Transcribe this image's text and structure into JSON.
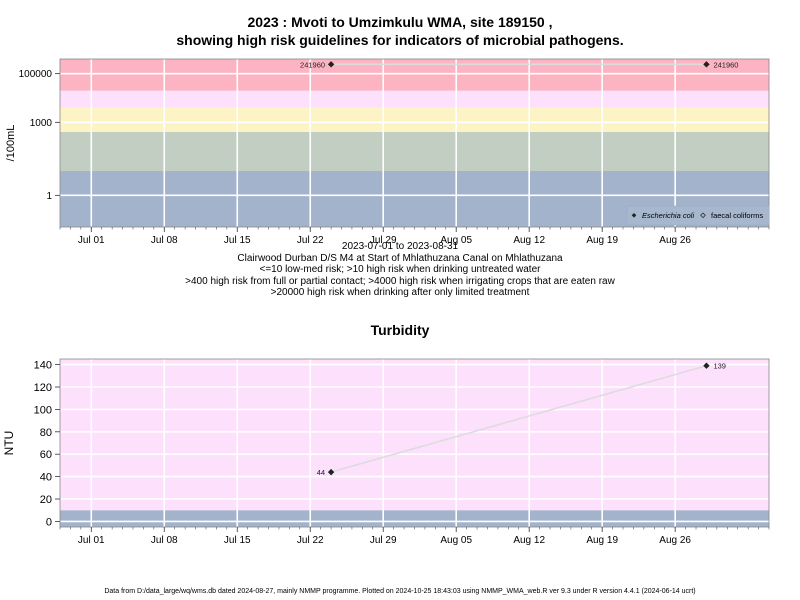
{
  "header": {
    "title_line1": "2023 : Mvoti to Umzimkulu WMA, site 189150 ,",
    "title_line2": "showing high risk guidelines for indicators of microbial pathogens."
  },
  "caption": [
    "2023-07-01 to 2023-08-31",
    "Clairwood Durban D/S M4 at Start of Mhlathuzana Canal on Mhlathuzana",
    "<=10 low-med risk; >10 high risk when drinking untreated water",
    ">400 high risk from full or partial contact; >4000 high risk when irrigating crops that are eaten raw",
    ">20000 high risk when drinking after only limited treatment"
  ],
  "footer": "Data from D:/data_large/wq/wms.db dated 2024-08-27, mainly NMMP programme. Plotted on 2024-10-25 18:43:03 using NMMP_WMA_web.R ver 9.3 under R version 4.4.1 (2024-06-14 ucrt)",
  "colors": {
    "band_low": "#a3b3cb",
    "band_contact": "#c2cec2",
    "band_irrigation": "#fcf4c4",
    "band_treatment": "#fce0fc",
    "band_high": "#fcb4c2",
    "grid": "#ffffff",
    "series_line": "#dcdcdc",
    "marker": "#222222"
  },
  "chart_data": [
    {
      "type": "scatter",
      "title": "",
      "xlabel": "",
      "ylabel": "/100mL",
      "y_scale": "log",
      "xlim": [
        "2023-06-28",
        "2023-09-04"
      ],
      "ylim": [
        0.05,
        400000
      ],
      "x_ticks": [
        "2023-07-01",
        "2023-07-08",
        "2023-07-15",
        "2023-07-22",
        "2023-07-29",
        "2023-08-05",
        "2023-08-12",
        "2023-08-19",
        "2023-08-26"
      ],
      "x_tick_labels": [
        "Jul 01",
        "Jul 08",
        "Jul 15",
        "Jul 22",
        "Jul 29",
        "Aug 05",
        "Aug 12",
        "Aug 19",
        "Aug 26"
      ],
      "y_ticks": [
        1,
        1000,
        100000
      ],
      "y_tick_labels": [
        "1",
        "1000",
        "100000"
      ],
      "bands": [
        {
          "from": 0.05,
          "to": 10,
          "color": "#a3b3cb"
        },
        {
          "from": 10,
          "to": 400,
          "color": "#c2cec2"
        },
        {
          "from": 400,
          "to": 4000,
          "color": "#fcf4c4"
        },
        {
          "from": 4000,
          "to": 20000,
          "color": "#fce0fc"
        },
        {
          "from": 20000,
          "to": 400000,
          "color": "#fcb4c2"
        }
      ],
      "legend": {
        "position": "bottom-right",
        "entries": [
          "Escherichia coli",
          "faecal coliforms"
        ]
      },
      "series": [
        {
          "name": "Escherichia coli",
          "marker": "filled-diamond",
          "x": [
            "2023-07-24",
            "2023-08-29"
          ],
          "y": [
            241960,
            241960
          ],
          "labels": [
            "241960",
            "241960"
          ]
        }
      ]
    },
    {
      "type": "line",
      "title": "Turbidity",
      "xlabel": "",
      "ylabel": "NTU",
      "xlim": [
        "2023-06-28",
        "2023-09-04"
      ],
      "ylim": [
        -5,
        145
      ],
      "x_ticks": [
        "2023-07-01",
        "2023-07-08",
        "2023-07-15",
        "2023-07-22",
        "2023-07-29",
        "2023-08-05",
        "2023-08-12",
        "2023-08-19",
        "2023-08-26"
      ],
      "x_tick_labels": [
        "Jul 01",
        "Jul 08",
        "Jul 15",
        "Jul 22",
        "Jul 29",
        "Aug 05",
        "Aug 12",
        "Aug 19",
        "Aug 26"
      ],
      "y_ticks": [
        0,
        20,
        40,
        60,
        80,
        100,
        120,
        140
      ],
      "y_tick_labels": [
        "0",
        "20",
        "40",
        "60",
        "80",
        "100",
        "120",
        "140"
      ],
      "bands": [
        {
          "from": -5,
          "to": 10,
          "color": "#a3b3cb"
        },
        {
          "from": 10,
          "to": 145,
          "color": "#fce0fc"
        }
      ],
      "series": [
        {
          "name": "",
          "marker": "filled-diamond",
          "x": [
            "2023-07-24",
            "2023-08-29"
          ],
          "y": [
            44,
            139
          ],
          "labels": [
            "44",
            "139"
          ]
        }
      ]
    }
  ]
}
